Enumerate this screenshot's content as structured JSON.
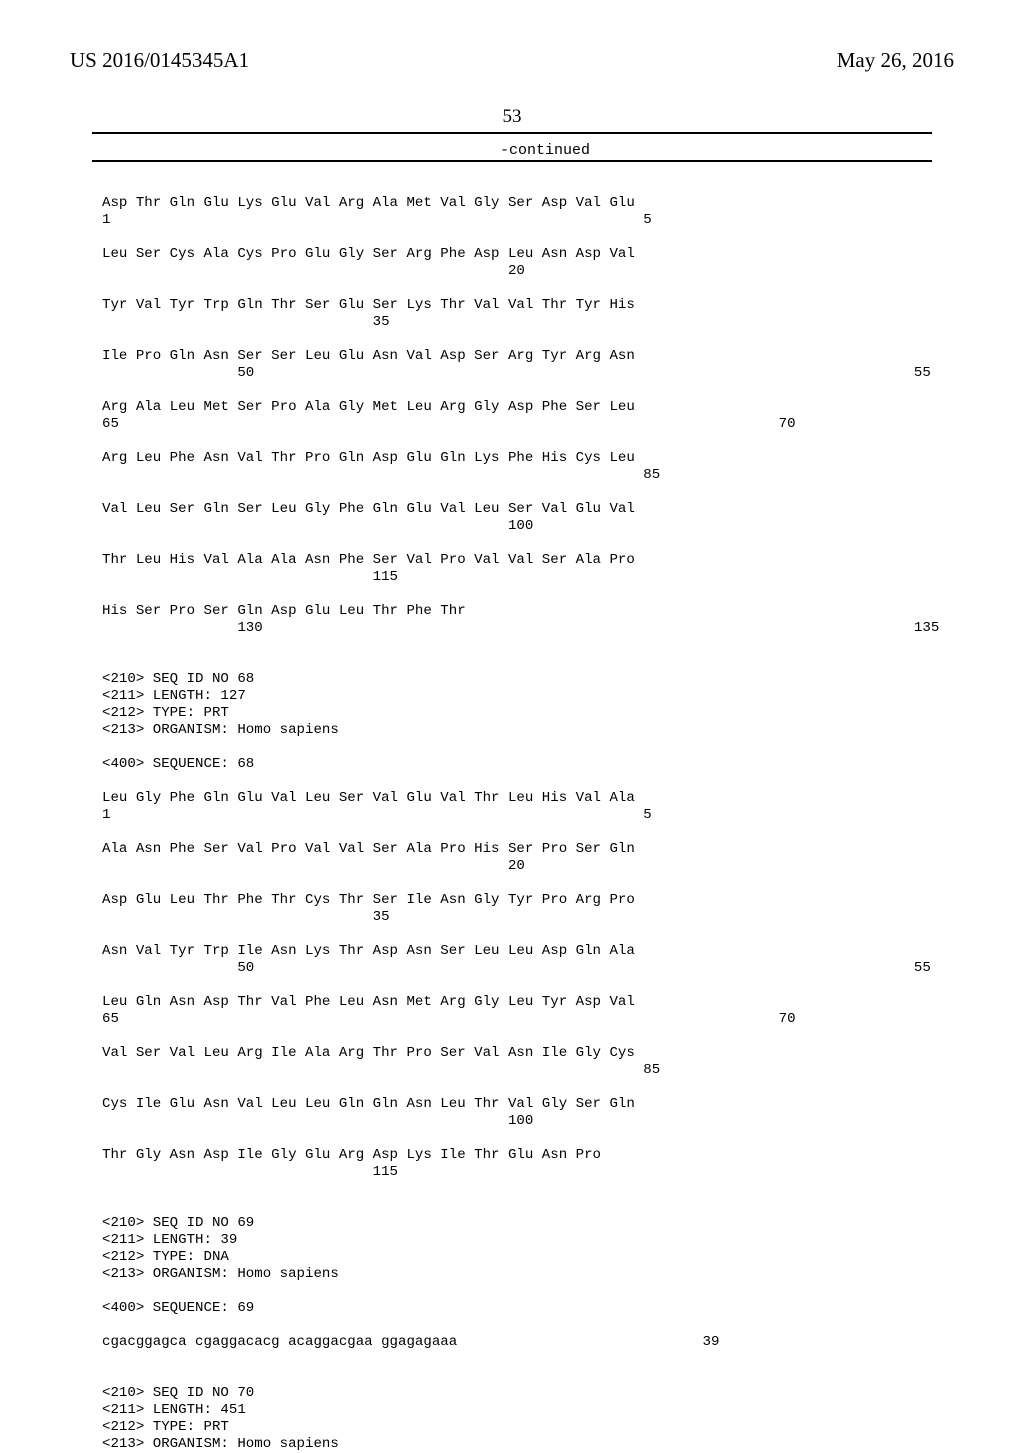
{
  "header": {
    "left": "US 2016/0145345A1",
    "right": "May 26, 2016",
    "page_number": "53",
    "continued": "-continued"
  },
  "seq1": {
    "rows": [
      {
        "aa": "Asp Thr Gln Glu Lys Glu Val Arg Ala Met Val Gly Ser Asp Val Glu",
        "nums": [
          [
            "1",
            0
          ],
          [
            "5",
            16
          ],
          [
            "10",
            36
          ],
          [
            "15",
            56
          ]
        ]
      },
      {
        "aa": "Leu Ser Cys Ala Cys Pro Glu Gly Ser Arg Phe Asp Leu Asn Asp Val",
        "nums": [
          [
            "20",
            12
          ],
          [
            "25",
            32
          ],
          [
            "30",
            52
          ]
        ]
      },
      {
        "aa": "Tyr Val Tyr Trp Gln Thr Ser Glu Ser Lys Thr Val Val Thr Tyr His",
        "nums": [
          [
            "35",
            8
          ],
          [
            "40",
            28
          ],
          [
            "45",
            48
          ]
        ]
      },
      {
        "aa": "Ile Pro Gln Asn Ser Ser Leu Glu Asn Val Asp Ser Arg Tyr Arg Asn",
        "nums": [
          [
            "50",
            4
          ],
          [
            "55",
            24
          ],
          [
            "60",
            44
          ]
        ]
      },
      {
        "aa": "Arg Ala Leu Met Ser Pro Ala Gly Met Leu Arg Gly Asp Phe Ser Leu",
        "nums": [
          [
            "65",
            0
          ],
          [
            "70",
            20
          ],
          [
            "75",
            40
          ],
          [
            "80",
            60
          ]
        ]
      },
      {
        "aa": "Arg Leu Phe Asn Val Thr Pro Gln Asp Glu Gln Lys Phe His Cys Leu",
        "nums": [
          [
            "85",
            16
          ],
          [
            "90",
            36
          ],
          [
            "95",
            56
          ]
        ]
      },
      {
        "aa": "Val Leu Ser Gln Ser Leu Gly Phe Gln Glu Val Leu Ser Val Glu Val",
        "nums": [
          [
            "100",
            12
          ],
          [
            "105",
            32
          ],
          [
            "110",
            52
          ]
        ]
      },
      {
        "aa": "Thr Leu His Val Ala Ala Asn Phe Ser Val Pro Val Val Ser Ala Pro",
        "nums": [
          [
            "115",
            8
          ],
          [
            "120",
            28
          ],
          [
            "125",
            48
          ]
        ]
      },
      {
        "aa": "His Ser Pro Ser Gln Asp Glu Leu Thr Phe Thr",
        "nums": [
          [
            "130",
            4
          ],
          [
            "135",
            24
          ]
        ]
      }
    ]
  },
  "meta68": [
    "<210> SEQ ID NO 68",
    "<211> LENGTH: 127",
    "<212> TYPE: PRT",
    "<213> ORGANISM: Homo sapiens",
    "",
    "<400> SEQUENCE: 68"
  ],
  "seq2": {
    "rows": [
      {
        "aa": "Leu Gly Phe Gln Glu Val Leu Ser Val Glu Val Thr Leu His Val Ala",
        "nums": [
          [
            "1",
            0
          ],
          [
            "5",
            16
          ],
          [
            "10",
            36
          ],
          [
            "15",
            56
          ]
        ]
      },
      {
        "aa": "Ala Asn Phe Ser Val Pro Val Val Ser Ala Pro His Ser Pro Ser Gln",
        "nums": [
          [
            "20",
            12
          ],
          [
            "25",
            32
          ],
          [
            "30",
            52
          ]
        ]
      },
      {
        "aa": "Asp Glu Leu Thr Phe Thr Cys Thr Ser Ile Asn Gly Tyr Pro Arg Pro",
        "nums": [
          [
            "35",
            8
          ],
          [
            "40",
            28
          ],
          [
            "45",
            48
          ]
        ]
      },
      {
        "aa": "Asn Val Tyr Trp Ile Asn Lys Thr Asp Asn Ser Leu Leu Asp Gln Ala",
        "nums": [
          [
            "50",
            4
          ],
          [
            "55",
            24
          ],
          [
            "60",
            44
          ]
        ]
      },
      {
        "aa": "Leu Gln Asn Asp Thr Val Phe Leu Asn Met Arg Gly Leu Tyr Asp Val",
        "nums": [
          [
            "65",
            0
          ],
          [
            "70",
            20
          ],
          [
            "75",
            40
          ],
          [
            "80",
            60
          ]
        ]
      },
      {
        "aa": "Val Ser Val Leu Arg Ile Ala Arg Thr Pro Ser Val Asn Ile Gly Cys",
        "nums": [
          [
            "85",
            16
          ],
          [
            "90",
            36
          ],
          [
            "95",
            56
          ]
        ]
      },
      {
        "aa": "Cys Ile Glu Asn Val Leu Leu Gln Gln Asn Leu Thr Val Gly Ser Gln",
        "nums": [
          [
            "100",
            12
          ],
          [
            "105",
            32
          ],
          [
            "110",
            52
          ]
        ]
      },
      {
        "aa": "Thr Gly Asn Asp Ile Gly Glu Arg Asp Lys Ile Thr Glu Asn Pro",
        "nums": [
          [
            "115",
            8
          ],
          [
            "120",
            28
          ],
          [
            "125",
            48
          ]
        ]
      }
    ]
  },
  "meta69": [
    "<210> SEQ ID NO 69",
    "<211> LENGTH: 39",
    "<212> TYPE: DNA",
    "<213> ORGANISM: Homo sapiens",
    "",
    "<400> SEQUENCE: 69"
  ],
  "dna": {
    "seq": "cgacggagca cgaggacacg acaggacgaa ggagagaaa",
    "len": "39"
  },
  "meta70": [
    "<210> SEQ ID NO 70",
    "<211> LENGTH: 451",
    "<212> TYPE: PRT",
    "<213> ORGANISM: Homo sapiens"
  ]
}
